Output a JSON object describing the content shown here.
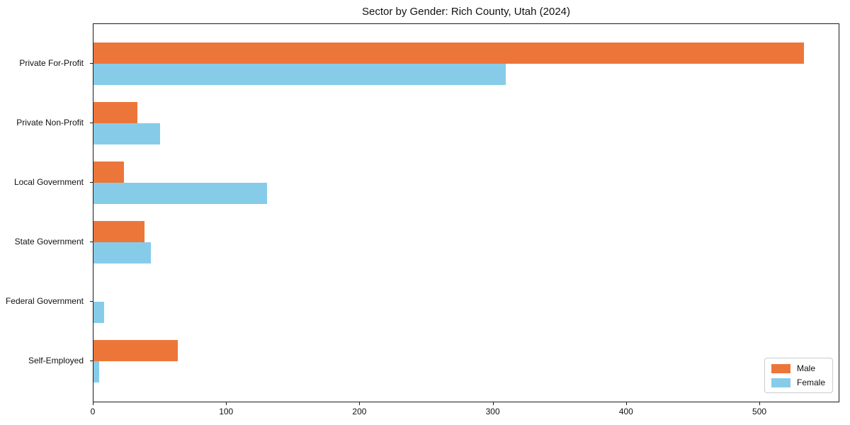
{
  "chart_data": {
    "type": "bar",
    "orientation": "horizontal",
    "title": "Sector by Gender: Rich County, Utah (2024)",
    "categories": [
      "Private For-Profit",
      "Private Non-Profit",
      "Local Government",
      "State Government",
      "Federal Government",
      "Self-Employed"
    ],
    "series": [
      {
        "name": "Male",
        "color": "#ec763a",
        "values": [
          533,
          33,
          23,
          38,
          0,
          63
        ]
      },
      {
        "name": "Female",
        "color": "#86cce9",
        "values": [
          309,
          50,
          130,
          43,
          8,
          4
        ]
      }
    ],
    "x_ticks": [
      "0",
      "100",
      "200",
      "300",
      "400",
      "500"
    ],
    "x_tick_values": [
      0,
      100,
      200,
      300,
      400,
      500
    ],
    "xlim": [
      0,
      560
    ],
    "xlabel": "",
    "ylabel": "",
    "grid": false,
    "legend_position": "lower right"
  }
}
